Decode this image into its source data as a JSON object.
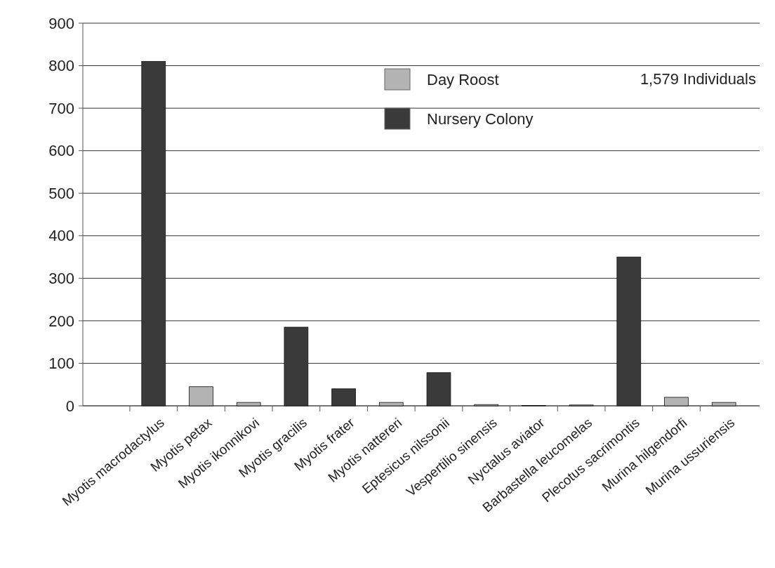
{
  "chart_data": {
    "type": "bar",
    "categories": [
      "Myotis macrodactylus",
      "Myotis petax",
      "Myotis ikonnikovi",
      "Myotis gracilis",
      "Myotis frater",
      "Myotis nattereri",
      "Eptesicus nilssonii",
      "Vespertilio sinensis",
      "Nyctalus aviator",
      "Barbastella leucomelas",
      "Plecotus sacrimontis",
      "Murina hilgendorfi",
      "Murina ussuriensis"
    ],
    "series": [
      {
        "name": "Day Roost",
        "color": "#b3b3b3",
        "values": [
          null,
          45,
          8,
          null,
          null,
          8,
          null,
          3,
          1,
          2,
          null,
          20,
          8
        ]
      },
      {
        "name": "Nursery Colony",
        "color": "#3a3a3a",
        "values": [
          810,
          null,
          null,
          185,
          40,
          null,
          78,
          null,
          null,
          null,
          350,
          null,
          null
        ]
      }
    ],
    "stacked": true,
    "ylim": [
      0,
      900
    ],
    "yticks": [
      0,
      100,
      200,
      300,
      400,
      500,
      600,
      700,
      800,
      900
    ],
    "grid": "y",
    "legend": "top",
    "annotations": [
      "1,579 Individuals"
    ]
  }
}
